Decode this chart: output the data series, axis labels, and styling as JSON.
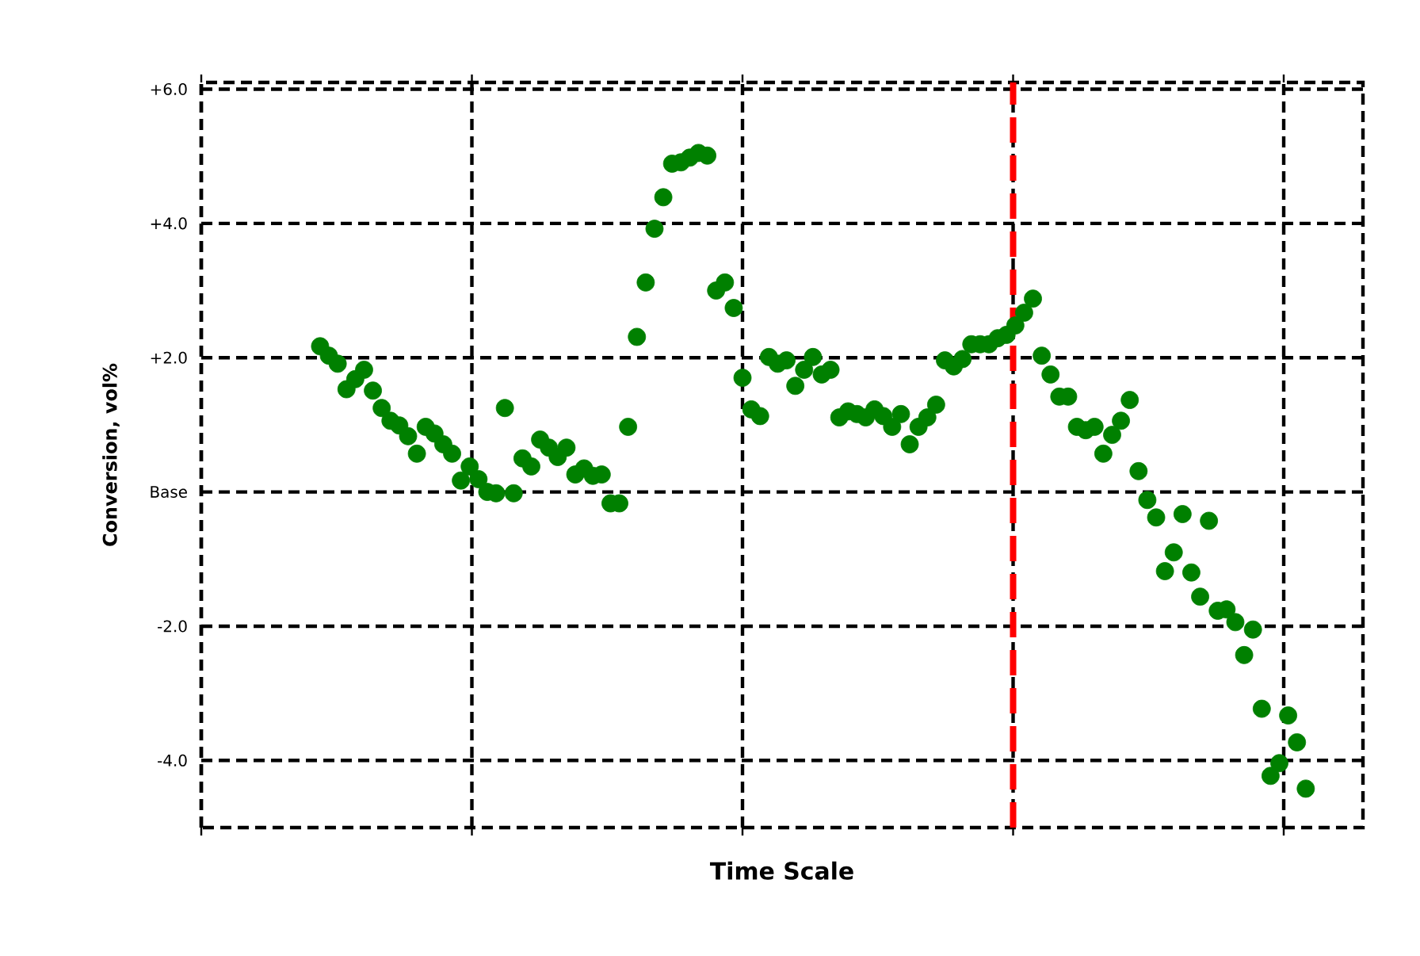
{
  "chart_data": {
    "type": "scatter",
    "xlabel": "Time Scale",
    "ylabel": "Conversion, vol%",
    "categories": [
      null,
      null,
      null,
      null,
      null,
      null,
      null,
      null,
      null,
      null,
      null,
      null,
      null,
      null,
      null,
      null,
      null,
      null,
      null,
      null,
      null,
      null,
      null,
      null,
      null,
      null,
      null,
      null,
      null,
      null,
      null,
      null,
      null,
      null,
      null,
      null,
      null,
      null,
      null,
      null,
      null,
      null,
      null,
      null,
      null,
      null,
      null,
      null,
      null,
      null,
      null,
      null,
      null,
      null,
      null,
      null,
      null,
      null,
      null,
      null,
      null,
      null,
      null,
      null,
      null,
      null,
      null,
      null,
      null,
      null,
      null,
      null,
      null,
      null,
      null,
      null,
      null,
      null,
      null,
      null,
      null,
      null,
      null,
      null,
      null,
      null,
      null,
      null,
      null,
      null,
      null,
      null,
      null,
      null,
      null,
      null,
      null,
      null,
      null,
      null,
      null,
      null,
      null,
      null,
      null,
      null,
      null,
      null,
      null,
      null,
      null,
      null,
      null,
      null,
      null,
      null,
      null,
      null,
      null,
      null,
      null,
      null,
      null,
      null,
      null,
      null,
      null,
      null,
      null,
      null,
      null,
      null
    ],
    "values": [
      null,
      null,
      null,
      null,
      null,
      null,
      null,
      null,
      null,
      null,
      null,
      null,
      null,
      2.17,
      2.03,
      1.91,
      1.53,
      1.68,
      1.82,
      1.51,
      1.25,
      1.06,
      0.99,
      0.83,
      0.57,
      0.97,
      0.87,
      0.71,
      0.57,
      0.17,
      0.38,
      0.19,
      0,
      -0.02,
      1.25,
      -0.02,
      0.5,
      0.38,
      0.78,
      0.66,
      0.52,
      0.66,
      0.26,
      0.35,
      0.24,
      0.26,
      -0.17,
      -0.17,
      0.97,
      2.31,
      3.12,
      3.92,
      4.39,
      4.89,
      4.91,
      4.98,
      5.05,
      5.01,
      3.0,
      3.12,
      2.74,
      1.7,
      1.23,
      1.13,
      2.01,
      1.91,
      1.96,
      1.58,
      1.82,
      2.01,
      1.75,
      1.82,
      1.11,
      1.2,
      1.16,
      1.11,
      1.23,
      1.13,
      0.97,
      1.16,
      0.71,
      0.97,
      1.11,
      1.3,
      1.96,
      1.87,
      1.98,
      2.2,
      2.2,
      2.2,
      2.29,
      2.34,
      2.48,
      2.67,
      2.88,
      2.03,
      1.75,
      1.42,
      1.42,
      0.97,
      0.92,
      0.97,
      0.57,
      0.85,
      1.06,
      1.37,
      0.31,
      -0.12,
      -0.38,
      -1.18,
      -0.9,
      -0.33,
      -1.2,
      -1.56,
      -0.43,
      -1.77,
      -1.75,
      -1.94,
      -2.43,
      -2.05,
      -3.23,
      -4.23,
      -4.04,
      -3.33,
      -3.73,
      -4.42,
      null,
      null,
      null,
      null,
      null,
      null
    ],
    "color": "#008000",
    "marker": "circle",
    "ylim": [
      -5,
      6.1
    ],
    "yticks": [
      {
        "value": -4,
        "label": "-4.0"
      },
      {
        "value": -2,
        "label": "-2.0"
      },
      {
        "value": 0,
        "label": "Base"
      },
      {
        "value": 2,
        "label": "+2.0"
      },
      {
        "value": 4,
        "label": "+4.0"
      },
      {
        "value": 6,
        "label": "+6.0"
      }
    ],
    "tick_labels": "y",
    "grid": true
  }
}
